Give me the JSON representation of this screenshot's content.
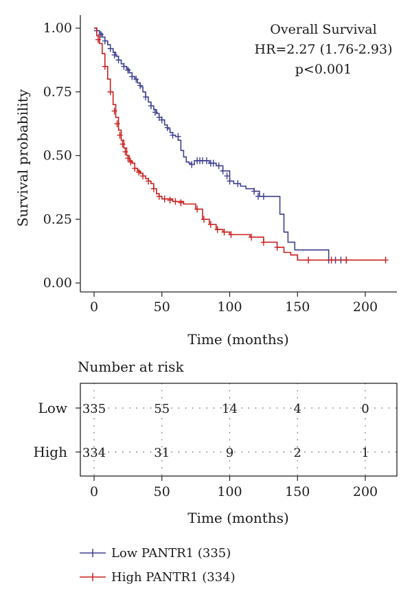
{
  "chart_data": {
    "type": "line",
    "subtype": "kaplan-meier",
    "annotations": [
      "Overall Survival",
      "HR=2.27 (1.76-2.93)",
      "p<0.001"
    ],
    "xlabel": "Time (months)",
    "ylabel": "Survival probability",
    "xlim": [
      -8,
      222
    ],
    "ylim": [
      -0.08,
      1.05
    ],
    "x_ticks": [
      0,
      50,
      100,
      150,
      200
    ],
    "x_tick_labels": [
      "0",
      "50",
      "100",
      "150",
      "200"
    ],
    "y_ticks": [
      0,
      0.25,
      0.5,
      0.75,
      1.0
    ],
    "y_tick_labels": [
      "0.00",
      "0.25",
      "0.50",
      "0.75",
      "1.00"
    ],
    "grid": false,
    "series": [
      {
        "name": "Low PANTR1 (335)",
        "color": "#3d3f8f",
        "x": [
          0,
          2,
          4,
          6,
          8,
          10,
          12,
          14,
          16,
          18,
          20,
          22,
          24,
          26,
          28,
          30,
          32,
          34,
          36,
          38,
          40,
          42,
          44,
          46,
          48,
          50,
          52,
          54,
          56,
          58,
          60,
          62,
          64,
          66,
          68,
          70,
          72,
          74,
          76,
          80,
          85,
          90,
          95,
          100,
          103,
          108,
          112,
          118,
          122,
          126,
          130,
          135,
          137,
          140,
          143,
          148,
          158,
          173,
          186
        ],
        "y": [
          1.0,
          0.99,
          0.98,
          0.965,
          0.95,
          0.935,
          0.92,
          0.905,
          0.89,
          0.875,
          0.86,
          0.85,
          0.84,
          0.825,
          0.81,
          0.8,
          0.785,
          0.77,
          0.75,
          0.73,
          0.71,
          0.695,
          0.68,
          0.665,
          0.65,
          0.64,
          0.62,
          0.605,
          0.59,
          0.58,
          0.575,
          0.56,
          0.52,
          0.495,
          0.475,
          0.47,
          0.465,
          0.48,
          0.48,
          0.48,
          0.47,
          0.46,
          0.44,
          0.4,
          0.39,
          0.38,
          0.37,
          0.36,
          0.34,
          0.34,
          0.34,
          0.34,
          0.27,
          0.2,
          0.16,
          0.13,
          0.13,
          0.09,
          0.09
        ],
        "censor_x": [
          2,
          5,
          8,
          12,
          15,
          18,
          22,
          25,
          28,
          31,
          34,
          38,
          42,
          45,
          48,
          50,
          54,
          58,
          62,
          72,
          76,
          78,
          80,
          83,
          86,
          88,
          92,
          95,
          98,
          100,
          106,
          118,
          121,
          125,
          173,
          178,
          182,
          186
        ],
        "censor_y": [
          0.99,
          0.975,
          0.95,
          0.92,
          0.895,
          0.875,
          0.85,
          0.835,
          0.81,
          0.8,
          0.775,
          0.73,
          0.695,
          0.67,
          0.65,
          0.64,
          0.61,
          0.58,
          0.575,
          0.465,
          0.48,
          0.48,
          0.48,
          0.48,
          0.47,
          0.47,
          0.46,
          0.44,
          0.42,
          0.4,
          0.39,
          0.36,
          0.34,
          0.34,
          0.09,
          0.09,
          0.09,
          0.09
        ]
      },
      {
        "name": "High PANTR1 (334)",
        "color": "#c9201f",
        "x": [
          0,
          2,
          4,
          6,
          8,
          10,
          12,
          14,
          16,
          18,
          20,
          22,
          24,
          26,
          28,
          30,
          32,
          34,
          36,
          38,
          40,
          42,
          44,
          46,
          48,
          50,
          54,
          58,
          62,
          66,
          70,
          75,
          80,
          85,
          90,
          95,
          100,
          105,
          110,
          115,
          125,
          135,
          140,
          145,
          150,
          160,
          175,
          200,
          215
        ],
        "y": [
          1.0,
          0.97,
          0.94,
          0.9,
          0.85,
          0.8,
          0.75,
          0.7,
          0.65,
          0.6,
          0.56,
          0.53,
          0.5,
          0.48,
          0.47,
          0.45,
          0.44,
          0.43,
          0.42,
          0.41,
          0.4,
          0.39,
          0.37,
          0.35,
          0.34,
          0.33,
          0.33,
          0.32,
          0.32,
          0.31,
          0.31,
          0.29,
          0.25,
          0.23,
          0.21,
          0.2,
          0.19,
          0.19,
          0.19,
          0.18,
          0.16,
          0.14,
          0.12,
          0.11,
          0.09,
          0.09,
          0.09,
          0.09,
          0.09
        ],
        "censor_x": [
          3,
          8,
          12,
          15,
          17,
          19,
          21,
          23,
          25,
          27,
          30,
          33,
          36,
          40,
          44,
          48,
          52,
          56,
          60,
          64,
          76,
          81,
          86,
          91,
          96,
          101,
          116,
          125,
          135,
          158,
          175,
          186,
          215
        ],
        "censor_y": [
          0.955,
          0.85,
          0.75,
          0.675,
          0.625,
          0.58,
          0.545,
          0.515,
          0.49,
          0.475,
          0.45,
          0.435,
          0.42,
          0.4,
          0.37,
          0.34,
          0.33,
          0.325,
          0.32,
          0.315,
          0.29,
          0.25,
          0.23,
          0.21,
          0.2,
          0.19,
          0.18,
          0.16,
          0.14,
          0.09,
          0.09,
          0.09,
          0.09
        ]
      }
    ],
    "risk_table": {
      "title": "Number at risk",
      "xlabel": "Time (months)",
      "x_ticks": [
        0,
        50,
        100,
        150,
        200
      ],
      "x_tick_labels": [
        "0",
        "50",
        "100",
        "150",
        "200"
      ],
      "rows": [
        {
          "label": "Low",
          "values": [
            "335",
            "55",
            "14",
            "4",
            "0"
          ]
        },
        {
          "label": "High",
          "values": [
            "334",
            "31",
            "9",
            "2",
            "1"
          ]
        }
      ]
    },
    "legend": {
      "placement": "bottom-left",
      "entries": [
        {
          "label": "Low PANTR1 (335)",
          "color": "#3d3f8f"
        },
        {
          "label": "High PANTR1 (334)",
          "color": "#c9201f"
        }
      ]
    }
  }
}
